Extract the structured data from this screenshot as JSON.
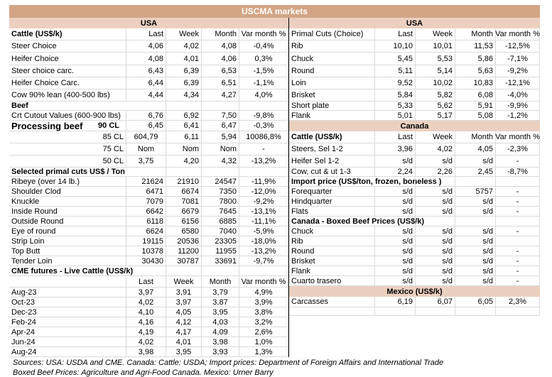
{
  "title": "USCMA markets",
  "colors": {
    "title_bar": "#d3a585",
    "band": "#ebd0c0",
    "grid": "#dadada"
  },
  "left": {
    "rows": [
      {
        "kind": "band",
        "label": "USA"
      },
      {
        "kind": "colhead",
        "label": "Cattle (US$/k)",
        "cells": [
          "Last",
          "Week",
          "Month",
          "Var month %"
        ]
      },
      {
        "kind": "data",
        "label": "Steer Choice",
        "cells": [
          "4,06",
          "4,02",
          "4,08",
          "-0,4%"
        ]
      },
      {
        "kind": "data",
        "label": "Heifer Choice",
        "cells": [
          "4,08",
          "4,01",
          "4,06",
          "0,3%"
        ]
      },
      {
        "kind": "data",
        "label": "Steer choice carc.",
        "cells": [
          "6,43",
          "6,39",
          "6,53",
          "-1,5%"
        ]
      },
      {
        "kind": "data",
        "label": "Heifer Choice Carc.",
        "cells": [
          "6,44",
          "6,39",
          "6,51",
          "-1,1%"
        ]
      },
      {
        "kind": "data",
        "label": "Cow 90% lean (400-500 lbs)",
        "cells": [
          "4,44",
          "4,34",
          "4,27",
          "4,0%"
        ]
      },
      {
        "kind": "section",
        "label": "Beef"
      },
      {
        "kind": "data",
        "label": "Crt Cutout Values (600-900 lbs)",
        "cells": [
          "6,76",
          "6,92",
          "7,50",
          "-9,8%"
        ]
      },
      {
        "kind": "proc",
        "label": "Processing beef",
        "sub": "90 CL",
        "cells": [
          "6,45",
          "6,41",
          "6,47",
          "-0,3%"
        ]
      },
      {
        "kind": "sub",
        "label": "85 CL",
        "cells": [
          "604,79",
          "6,11",
          "5,94",
          "10086,8%"
        ]
      },
      {
        "kind": "sub",
        "label": "75 CL",
        "cells": [
          "Nom",
          "Nom",
          "Nom",
          "-"
        ]
      },
      {
        "kind": "sub",
        "label": "50 CL",
        "cells": [
          "3,75",
          "4,20",
          "4,32",
          "-13,2%"
        ]
      },
      {
        "kind": "section",
        "label": "Selected primal cuts US$ / Ton"
      },
      {
        "kind": "data",
        "label": "Ribeye (over 14 lb.)",
        "cells": [
          "21624",
          "21910",
          "24547",
          "-11,9%"
        ]
      },
      {
        "kind": "data",
        "label": "Shoulder Clod",
        "cells": [
          "6471",
          "6674",
          "7350",
          "-12,0%"
        ]
      },
      {
        "kind": "data",
        "label": "Knuckle",
        "cells": [
          "7079",
          "7081",
          "7800",
          "-9,2%"
        ]
      },
      {
        "kind": "data",
        "label": "Inside Round",
        "cells": [
          "6642",
          "6679",
          "7645",
          "-13,1%"
        ]
      },
      {
        "kind": "data",
        "label": "Outside Round",
        "cells": [
          "6118",
          "6156",
          "6885",
          "-11,1%"
        ]
      },
      {
        "kind": "data",
        "label": "Eye of round",
        "cells": [
          "6624",
          "6580",
          "7040",
          "-5,9%"
        ]
      },
      {
        "kind": "data",
        "label": "Strip Loin",
        "cells": [
          "19115",
          "20536",
          "23305",
          "-18,0%"
        ]
      },
      {
        "kind": "data",
        "label": "Top Butt",
        "cells": [
          "10378",
          "11200",
          "11955",
          "-13,2%"
        ]
      },
      {
        "kind": "data",
        "label": "Tender Loin",
        "cells": [
          "30430",
          "30787",
          "33691",
          "-9,7%"
        ]
      },
      {
        "kind": "section",
        "label": "CME futures - Live Cattle (US$/k)"
      },
      {
        "kind": "colhead2",
        "label": "",
        "cells": [
          "Last",
          "Week",
          "Month",
          "Var month %"
        ]
      },
      {
        "kind": "fut",
        "label": "Aug-23",
        "cells": [
          "3,97",
          "3,91",
          "3,79",
          "4,9%"
        ]
      },
      {
        "kind": "fut",
        "label": "Oct-23",
        "cells": [
          "4,02",
          "3,97",
          "3,87",
          "3,9%"
        ]
      },
      {
        "kind": "fut",
        "label": "Dec-23",
        "cells": [
          "4,10",
          "4,05",
          "3,95",
          "3,8%"
        ]
      },
      {
        "kind": "fut",
        "label": "Feb-24",
        "cells": [
          "4,16",
          "4,12",
          "4,03",
          "3,2%"
        ]
      },
      {
        "kind": "fut",
        "label": "Apr-24",
        "cells": [
          "4,19",
          "4,17",
          "4,09",
          "2,6%"
        ]
      },
      {
        "kind": "fut",
        "label": "Jun-24",
        "cells": [
          "4,02",
          "4,01",
          "3,98",
          "1,0%"
        ]
      },
      {
        "kind": "fut",
        "label": "Aug-24",
        "cells": [
          "3,98",
          "3,95",
          "3,93",
          "1,3%"
        ]
      }
    ]
  },
  "right": {
    "rows": [
      {
        "kind": "band",
        "label": "USA"
      },
      {
        "kind": "colheadn",
        "label": "Primal Cuts (Choice)",
        "cells": [
          "Last",
          "Week",
          "Month",
          "Var month %"
        ]
      },
      {
        "kind": "data",
        "label": "Rib",
        "cells": [
          "10,10",
          "10,01",
          "11,53",
          "-12,5%"
        ]
      },
      {
        "kind": "data",
        "label": "Chuck",
        "cells": [
          "5,45",
          "5,53",
          "5,86",
          "-7,1%"
        ]
      },
      {
        "kind": "data",
        "label": "Round",
        "cells": [
          "5,11",
          "5,14",
          "5,63",
          "-9,2%"
        ]
      },
      {
        "kind": "data",
        "label": "Loin",
        "cells": [
          "9,52",
          "10,02",
          "10,83",
          "-12,1%"
        ]
      },
      {
        "kind": "data",
        "label": "Brisket",
        "cells": [
          "5,84",
          "5,82",
          "6,08",
          "-4,0%"
        ]
      },
      {
        "kind": "data",
        "label": "Short plate",
        "cells": [
          "5,33",
          "5,62",
          "5,91",
          "-9,9%"
        ]
      },
      {
        "kind": "data",
        "label": "Flank",
        "cells": [
          "5,01",
          "5,17",
          "5,08",
          "-1,2%"
        ]
      },
      {
        "kind": "band",
        "label": "Canada"
      },
      {
        "kind": "colhead",
        "label": "Cattle (US$/k)",
        "cells": [
          "Last",
          "Week",
          "Month",
          "Var month %"
        ]
      },
      {
        "kind": "data",
        "label": "Steers, Sel 1-2",
        "cells": [
          "3,96",
          "4,02",
          "4,05",
          "-2,3%"
        ]
      },
      {
        "kind": "data",
        "label": "Heifer Sel 1-2",
        "cells": [
          "s/d",
          "s/d",
          "s/d",
          "-"
        ]
      },
      {
        "kind": "data",
        "label": "Cow, cut & ut 1-3",
        "cells": [
          "2,24",
          "2,26",
          "2,45",
          "-8,7%"
        ]
      },
      {
        "kind": "section",
        "label": "Import price (US$/ton, frozen, boneless )"
      },
      {
        "kind": "data",
        "label": "Forequarter",
        "cells": [
          "s/d",
          "s/d",
          "5757",
          "-"
        ]
      },
      {
        "kind": "data",
        "label": "Hindquarter",
        "cells": [
          "s/d",
          "s/d",
          "s/d",
          "-"
        ]
      },
      {
        "kind": "data",
        "label": "Flats",
        "cells": [
          "s/d",
          "s/d",
          "s/d",
          "-"
        ]
      },
      {
        "kind": "section",
        "label": "Canada - Boxed Beef Prices (US$/k)"
      },
      {
        "kind": "data",
        "label": "Chuck",
        "cells": [
          "s/d",
          "s/d",
          "s/d",
          "-"
        ]
      },
      {
        "kind": "data",
        "label": "Rib",
        "cells": [
          "s/d",
          "s/d",
          "s/d",
          ""
        ]
      },
      {
        "kind": "data",
        "label": "Round",
        "cells": [
          "s/d",
          "s/d",
          "s/d",
          "-"
        ]
      },
      {
        "kind": "data",
        "label": "Brisket",
        "cells": [
          "s/d",
          "s/d",
          "s/d",
          "-"
        ]
      },
      {
        "kind": "data",
        "label": "Flank",
        "cells": [
          "s/d",
          "s/d",
          "s/d",
          "-"
        ]
      },
      {
        "kind": "data",
        "label": "Cuarto trasero",
        "cells": [
          "s/d",
          "s/d",
          "s/d",
          "-"
        ]
      },
      {
        "kind": "band",
        "label": "Mexico (US$/k)"
      },
      {
        "kind": "data",
        "label": "Carcasses",
        "cells": [
          "6,19",
          "6,07",
          "6,05",
          "2,3%"
        ]
      },
      {
        "kind": "data",
        "label": "",
        "cells": [
          "",
          "",
          "",
          ""
        ]
      }
    ]
  },
  "sources": [
    "Sources: USA: USDA and CME. Canada: Cattle: USDA; Import prices: Department of Foreign Affairs and International Trade",
    "Boxed Beef Prices: Agriculture and Agri-Food Canada. Mexico: Urner Barry"
  ]
}
